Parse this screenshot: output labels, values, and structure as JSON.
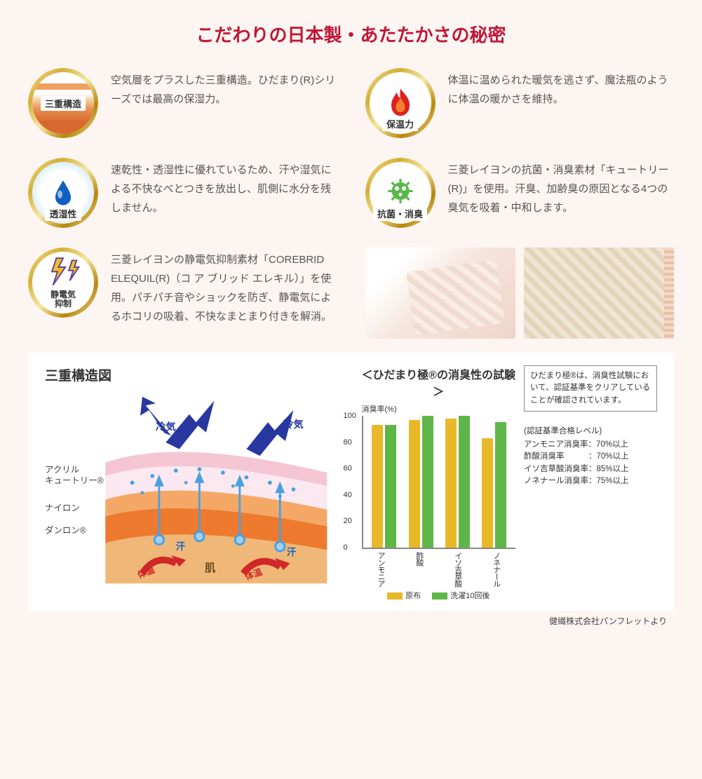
{
  "title": {
    "text": "こだわりの日本製・あたたかさの秘密",
    "color": "#c01838"
  },
  "features": [
    {
      "badge": "三重構造",
      "text": "空気層をプラスした三重構造。ひだまり(R)シリーズでは最高の保湿力。",
      "icon": "layers"
    },
    {
      "badge": "保温力",
      "text": "体温に温められた暖気を逃さず、魔法瓶のように体温の暖かさを維持。",
      "icon": "flame"
    },
    {
      "badge": "透湿性",
      "text": "速乾性・透湿性に優れているため、汗や湿気による不快なべとつきを放出し、肌側に水分を残しません。",
      "icon": "drop"
    },
    {
      "badge": "抗菌・消臭",
      "text": "三菱レイヨンの抗菌・消臭素材「キュートリー (R)」を使用。汗臭、加齢臭の原因となる4つの臭気を吸着・中和します。",
      "icon": "germ"
    },
    {
      "badge": "静電気\n抑制",
      "text": "三菱レイヨンの静電気抑制素材「COREBRID ELEQUIL(R)（コ ア ブリッド エレキル）」を使用。パチパチ音やショックを防ぎ、静電気によるホコリの吸着、不快なまとまり付きを解消。",
      "icon": "bolt"
    }
  ],
  "photos": {
    "left_bg": "#f5e5dd",
    "right_bg": "#e8dcc8"
  },
  "diagram": {
    "title": "三重構造図",
    "layers": [
      "アクリル\nキュートリー®",
      "ナイロン",
      "ダンロン®"
    ],
    "labels": {
      "cold": "冷気",
      "sweat": "汗",
      "body": "体温",
      "skin": "肌"
    },
    "colors": {
      "layer1": "#f4c6d4",
      "layer2": "#f5a866",
      "layer3": "#ed7a2e",
      "skin": "#f0b878",
      "arrow_cold": "#2838a0",
      "arrow_hot": "#d02828",
      "sweat_drop": "#4aa0e0"
    }
  },
  "chart": {
    "title": "＜ひだまり極®の消臭性の試験＞",
    "ylabel": "消臭率(%)",
    "ylim": [
      0,
      100
    ],
    "yticks": [
      0,
      20,
      40,
      60,
      80,
      100
    ],
    "categories": [
      "アンモニア",
      "酢酸",
      "イソ吉草酸",
      "ノネナール"
    ],
    "series": [
      {
        "name": "原布",
        "color": "#e8b828",
        "values": [
          92,
          96,
          97,
          82
        ]
      },
      {
        "name": "洗濯10回後",
        "color": "#5fb648",
        "values": [
          92,
          99,
          99,
          94
        ]
      }
    ],
    "note": "ひだまり極®は、消臭性試験において、認証基準をクリアしていることが確認されています。",
    "criteria_title": "(認証基準合格レベル)",
    "criteria": [
      "アンモニア消臭率：70%以上",
      "酢酸消臭率　　　：70%以上",
      "イソ吉草酸消臭率：85%以上",
      "ノネナール消臭率：75%以上"
    ]
  },
  "footnote": "健繊株式会社パンフレットより"
}
